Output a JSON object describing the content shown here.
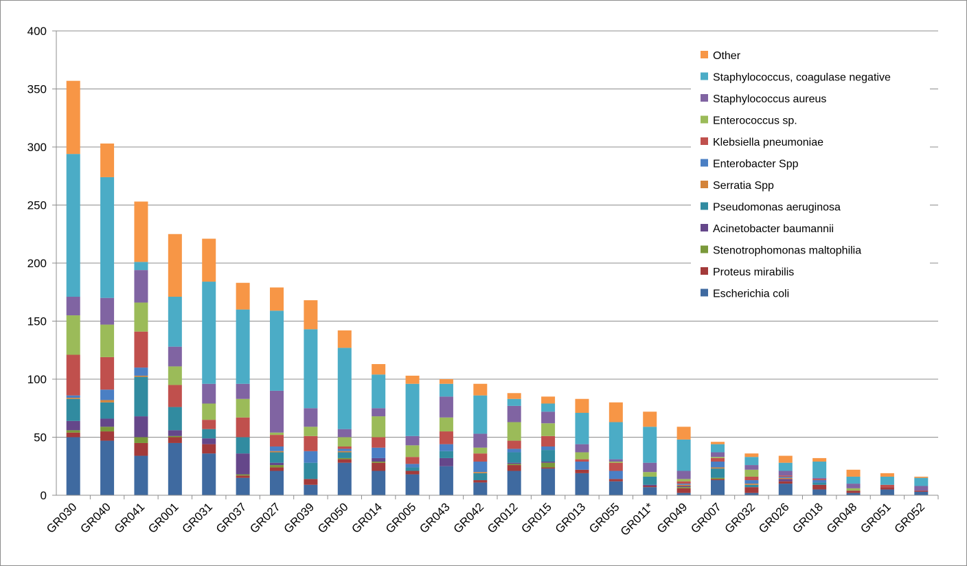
{
  "chart_data": {
    "type": "bar",
    "stacked": true,
    "title": "",
    "xlabel": "",
    "ylabel": "",
    "ylim": [
      0,
      400
    ],
    "yticks": [
      0,
      50,
      100,
      150,
      200,
      250,
      300,
      350,
      400
    ],
    "grid": "horizontal",
    "legend_position": "right",
    "categories": [
      "GR030",
      "GR040",
      "GR041",
      "GR001",
      "GR031",
      "GR037",
      "GR027",
      "GR039",
      "GR050",
      "GR014",
      "GR005",
      "GR043",
      "GR042",
      "GR012",
      "GR015",
      "GR013",
      "GR055",
      "GR011*",
      "GR049",
      "GR007",
      "GR032",
      "GR026",
      "GR018",
      "GR048",
      "GR051",
      "GR052"
    ],
    "series": [
      {
        "name": "Escherichia coli",
        "color": "#3f6aa0",
        "values": [
          50,
          47,
          34,
          45,
          36,
          15,
          21,
          9,
          28,
          21,
          18,
          25,
          11,
          21,
          23,
          19,
          12,
          7,
          2,
          13,
          2,
          10,
          5,
          2,
          5,
          3
        ]
      },
      {
        "name": "Proteus mirabilis",
        "color": "#a33a3a",
        "values": [
          4,
          8,
          11,
          5,
          8,
          2,
          3,
          5,
          3,
          7,
          3,
          0,
          2,
          5,
          1,
          3,
          2,
          1,
          4,
          1,
          5,
          2,
          4,
          2,
          2,
          1
        ]
      },
      {
        "name": "Stenotrophomonas maltophilia",
        "color": "#7a993a",
        "values": [
          2,
          4,
          5,
          1,
          0,
          1,
          2,
          0,
          1,
          1,
          0,
          0,
          0,
          1,
          4,
          0,
          0,
          0,
          1,
          1,
          0,
          0,
          0,
          0,
          0,
          0
        ]
      },
      {
        "name": "Acinetobacter baumannii",
        "color": "#65478a",
        "values": [
          8,
          7,
          18,
          5,
          5,
          18,
          2,
          0,
          0,
          3,
          0,
          7,
          0,
          1,
          1,
          0,
          0,
          1,
          1,
          0,
          0,
          2,
          0,
          0,
          0,
          0
        ]
      },
      {
        "name": "Pseudomonas aeruginosa",
        "color": "#318ba0",
        "values": [
          19,
          14,
          34,
          20,
          8,
          14,
          9,
          14,
          5,
          0,
          3,
          6,
          6,
          9,
          10,
          0,
          0,
          7,
          0,
          8,
          2,
          0,
          2,
          0,
          0,
          0
        ]
      },
      {
        "name": "Serratia Spp",
        "color": "#d3833a",
        "values": [
          1,
          2,
          1,
          0,
          0,
          0,
          1,
          0,
          1,
          0,
          0,
          0,
          1,
          0,
          0,
          0,
          0,
          0,
          1,
          1,
          1,
          1,
          0,
          0,
          0,
          0
        ]
      },
      {
        "name": "Enterobacter Spp",
        "color": "#4a7fc4",
        "values": [
          2,
          9,
          7,
          0,
          0,
          0,
          4,
          10,
          2,
          9,
          3,
          6,
          9,
          3,
          3,
          7,
          7,
          0,
          1,
          5,
          3,
          1,
          2,
          0,
          0,
          0
        ]
      },
      {
        "name": "Klebsiella pneumoniae",
        "color": "#c0504d",
        "values": [
          35,
          28,
          31,
          19,
          8,
          17,
          10,
          13,
          2,
          9,
          6,
          11,
          7,
          7,
          9,
          2,
          7,
          0,
          2,
          3,
          3,
          1,
          1,
          0,
          2,
          0
        ]
      },
      {
        "name": "Enterococcus sp.",
        "color": "#9bbb59",
        "values": [
          34,
          28,
          25,
          16,
          14,
          16,
          2,
          8,
          8,
          18,
          10,
          12,
          5,
          16,
          11,
          6,
          1,
          4,
          2,
          1,
          6,
          0,
          0,
          2,
          0,
          0
        ]
      },
      {
        "name": "Staphylococcus aureus",
        "color": "#8064a2",
        "values": [
          16,
          23,
          28,
          17,
          17,
          13,
          36,
          16,
          7,
          7,
          8,
          18,
          12,
          14,
          10,
          7,
          2,
          8,
          7,
          4,
          4,
          4,
          1,
          4,
          0,
          4
        ]
      },
      {
        "name": "Staphylococcus, coagulase negative",
        "color": "#4bacc6",
        "values": [
          123,
          104,
          7,
          43,
          88,
          64,
          69,
          68,
          70,
          29,
          45,
          11,
          33,
          6,
          7,
          27,
          32,
          31,
          27,
          7,
          7,
          7,
          14,
          6,
          7,
          7
        ]
      },
      {
        "name": "Other",
        "color": "#f79646",
        "values": [
          63,
          29,
          52,
          54,
          37,
          23,
          20,
          25,
          15,
          9,
          7,
          4,
          10,
          5,
          6,
          12,
          17,
          13,
          11,
          2,
          3,
          6,
          3,
          6,
          3,
          1
        ]
      }
    ]
  }
}
